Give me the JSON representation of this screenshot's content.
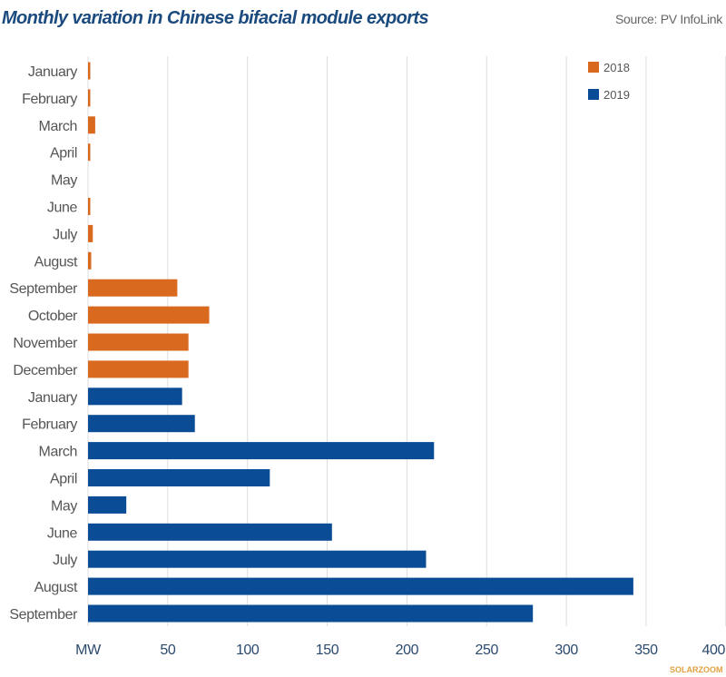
{
  "chart_data": {
    "type": "bar",
    "orientation": "horizontal",
    "title": "Monthly variation in Chinese bifacial module exports",
    "source": "Source: PV InfoLink",
    "xlabel": "MW",
    "xlim": [
      0,
      400
    ],
    "xticks": [
      50,
      100,
      150,
      200,
      250,
      300,
      350,
      400
    ],
    "grid": true,
    "legend_position": "top-right",
    "colors": {
      "2018": "#d9691f",
      "2019": "#0b4c97"
    },
    "legend": [
      "2018",
      "2019"
    ],
    "categories": [
      "January",
      "February",
      "March",
      "April",
      "May",
      "June",
      "July",
      "August",
      "September",
      "October",
      "November",
      "December",
      "January",
      "February",
      "March",
      "April",
      "May",
      "June",
      "July",
      "August",
      "September"
    ],
    "series_of_bar": [
      "2018",
      "2018",
      "2018",
      "2018",
      "2018",
      "2018",
      "2018",
      "2018",
      "2018",
      "2018",
      "2018",
      "2018",
      "2019",
      "2019",
      "2019",
      "2019",
      "2019",
      "2019",
      "2019",
      "2019",
      "2019"
    ],
    "values": [
      1,
      0.5,
      4.5,
      1,
      0,
      1,
      3,
      2,
      56,
      76,
      63,
      63,
      59,
      67,
      217,
      114,
      24,
      153,
      212,
      342,
      279
    ]
  },
  "watermark": "SOLARZOOM"
}
